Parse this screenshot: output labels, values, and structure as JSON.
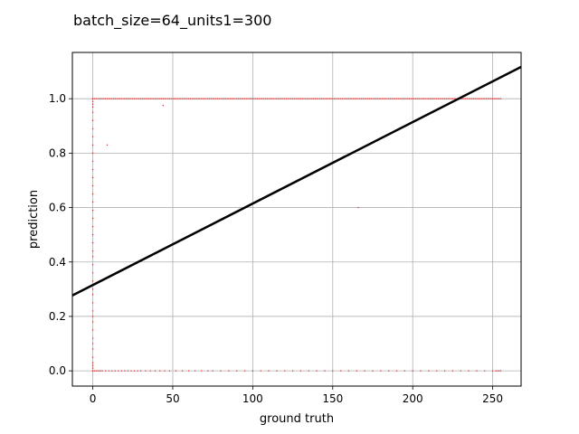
{
  "chart_data": {
    "type": "scatter",
    "title": "batch_size=64_units1=300",
    "xlabel": "ground truth",
    "ylabel": "prediction",
    "xlim": [
      -12.75,
      267.75
    ],
    "ylim": [
      -0.056,
      1.17
    ],
    "xticks": [
      0,
      50,
      100,
      150,
      200,
      250
    ],
    "yticks": [
      0.0,
      0.2,
      0.4,
      0.6,
      0.8,
      1.0
    ],
    "grid": true,
    "colors": {
      "points": "#d62728",
      "fit_line": "#000000",
      "grid": "#b0b0b0"
    },
    "series": [
      {
        "kind": "points",
        "points_top_row": {
          "y": 1.0,
          "x_from": 0,
          "x_to": 255,
          "x_step": 1
        },
        "points_bottom_row": {
          "y": 0.0,
          "x": [
            0,
            1,
            2,
            3,
            4,
            5,
            6,
            8,
            10,
            12,
            14,
            16,
            18,
            20,
            22,
            24,
            26,
            28,
            30,
            33,
            36,
            39,
            42,
            45,
            48,
            52,
            56,
            60,
            64,
            68,
            72,
            75,
            80,
            85,
            90,
            95,
            100,
            105,
            110,
            115,
            120,
            125,
            130,
            135,
            140,
            145,
            150,
            155,
            160,
            165,
            170,
            175,
            180,
            185,
            190,
            195,
            200,
            205,
            210,
            215,
            220,
            225,
            230,
            235,
            240,
            245,
            250,
            252,
            253,
            254,
            255
          ]
        },
        "points_near_zero_x": {
          "x": 0,
          "y": [
            0.0,
            0.01,
            0.02,
            0.03,
            0.05,
            0.08,
            0.1,
            0.12,
            0.15,
            0.18,
            0.2,
            0.22,
            0.25,
            0.28,
            0.3,
            0.33,
            0.36,
            0.39,
            0.42,
            0.44,
            0.47,
            0.5,
            0.53,
            0.56,
            0.59,
            0.62,
            0.65,
            0.68,
            0.71,
            0.74,
            0.77,
            0.8,
            0.83,
            0.86,
            0.89,
            0.92,
            0.95,
            0.97,
            0.98,
            0.99,
            1.0
          ]
        },
        "points_outliers": [
          {
            "x": 44,
            "y": 0.975
          },
          {
            "x": 9,
            "y": 0.83
          },
          {
            "x": 166,
            "y": 0.6
          }
        ]
      },
      {
        "kind": "line",
        "x": [
          -12.75,
          267.75
        ],
        "y": [
          0.277,
          1.117
        ]
      }
    ]
  }
}
